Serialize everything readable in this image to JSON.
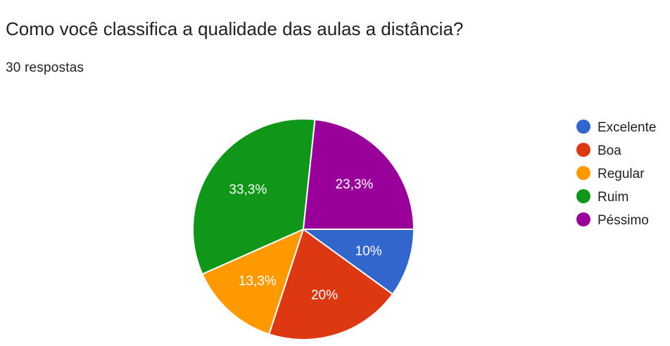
{
  "header": {
    "title": "Como você classifica a qualidade das aulas a distância?",
    "responses": "30 respostas"
  },
  "chart_data": {
    "type": "pie",
    "title": "Como você classifica a qualidade das aulas a distância?",
    "categories": [
      "Excelente",
      "Boa",
      "Regular",
      "Ruim",
      "Péssimo"
    ],
    "values": [
      10,
      20,
      13.3,
      33.3,
      23.3
    ],
    "value_labels": [
      "10%",
      "20%",
      "13,3%",
      "33,3%",
      "23,3%"
    ],
    "colors": [
      "#3366cc",
      "#dc3912",
      "#ff9900",
      "#109618",
      "#990099"
    ],
    "legend_position": "right"
  }
}
